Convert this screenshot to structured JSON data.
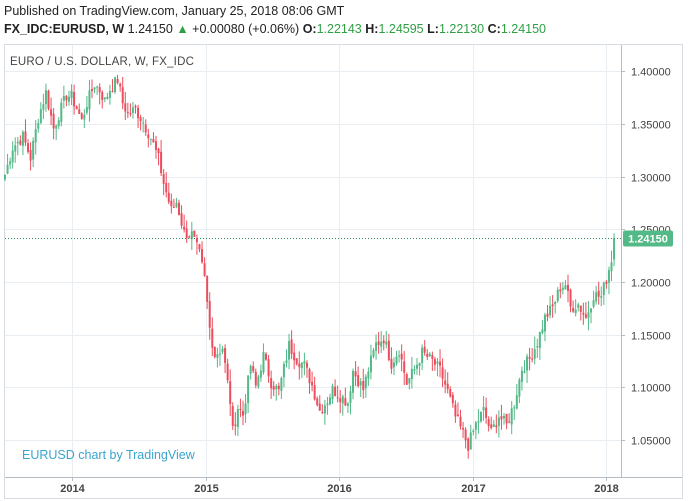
{
  "header": {
    "published": "Published on TradingView.com, January 25, 2018 08:06 GMT",
    "symbol": "FX_IDC:EURUSD, W",
    "last": "1.24150",
    "arrow": "▲",
    "change": "+0.00080 (+0.06%)",
    "o_label": "O:",
    "o_value": "1.22143",
    "h_label": "H:",
    "h_value": "1.24595",
    "l_label": "L:",
    "l_value": "1.22130",
    "c_label": "C:",
    "c_value": "1.24150"
  },
  "chart_title": "EURO / U.S. DOLLAR, W, FX_IDC",
  "watermark": "EURUSD chart by TradingView",
  "colors": {
    "up": "#53b987",
    "down": "#eb4d5c",
    "last_badge": "#53b987",
    "last_line": "#2e8b57",
    "grid": "#e9eef2",
    "axis_text": "#444444",
    "brand": "#3aa5cf"
  },
  "chart_data": {
    "type": "candlestick",
    "title": "EURO / U.S. DOLLAR, W, FX_IDC",
    "y_axis": {
      "position": "right",
      "ticks": [
        "1.05000",
        "1.10000",
        "1.15000",
        "1.20000",
        "1.25000",
        "1.30000",
        "1.35000",
        "1.40000"
      ],
      "ylim": [
        1.015,
        1.425
      ]
    },
    "x_axis": {
      "ticks": [
        "2014",
        "2015",
        "2016",
        "2017",
        "2018"
      ],
      "xlim": [
        "2013-07-01",
        "2018-02-10"
      ]
    },
    "last_price": {
      "value": 1.2415,
      "label": "1.24150"
    },
    "weekly_close_path": [
      [
        "2013-07-01",
        1.302
      ],
      [
        "2013-07-22",
        1.328
      ],
      [
        "2013-08-19",
        1.338
      ],
      [
        "2013-09-09",
        1.318
      ],
      [
        "2013-09-30",
        1.356
      ],
      [
        "2013-10-21",
        1.38
      ],
      [
        "2013-11-11",
        1.346
      ],
      [
        "2013-11-25",
        1.359
      ],
      [
        "2013-12-16",
        1.377
      ],
      [
        "2013-12-30",
        1.376
      ],
      [
        "2014-01-13",
        1.365
      ],
      [
        "2014-01-27",
        1.353
      ],
      [
        "2014-02-10",
        1.37
      ],
      [
        "2014-03-03",
        1.388
      ],
      [
        "2014-03-17",
        1.382
      ],
      [
        "2014-03-31",
        1.372
      ],
      [
        "2014-04-14",
        1.383
      ],
      [
        "2014-05-05",
        1.392
      ],
      [
        "2014-05-19",
        1.37
      ],
      [
        "2014-06-02",
        1.36
      ],
      [
        "2014-06-23",
        1.364
      ],
      [
        "2014-07-14",
        1.352
      ],
      [
        "2014-08-04",
        1.337
      ],
      [
        "2014-08-25",
        1.317
      ],
      [
        "2014-09-08",
        1.294
      ],
      [
        "2014-09-29",
        1.268
      ],
      [
        "2014-10-13",
        1.276
      ],
      [
        "2014-11-03",
        1.247
      ],
      [
        "2014-11-24",
        1.245
      ],
      [
        "2014-12-15",
        1.226
      ],
      [
        "2014-12-29",
        1.203
      ],
      [
        "2015-01-12",
        1.156
      ],
      [
        "2015-01-26",
        1.131
      ],
      [
        "2015-02-16",
        1.138
      ],
      [
        "2015-03-09",
        1.087
      ],
      [
        "2015-03-16",
        1.058
      ],
      [
        "2015-03-30",
        1.081
      ],
      [
        "2015-04-13",
        1.074
      ],
      [
        "2015-05-04",
        1.121
      ],
      [
        "2015-05-18",
        1.101
      ],
      [
        "2015-06-08",
        1.13
      ],
      [
        "2015-06-29",
        1.105
      ],
      [
        "2015-07-20",
        1.096
      ],
      [
        "2015-08-17",
        1.14
      ],
      [
        "2015-09-07",
        1.127
      ],
      [
        "2015-09-28",
        1.121
      ],
      [
        "2015-10-19",
        1.102
      ],
      [
        "2015-11-09",
        1.078
      ],
      [
        "2015-11-30",
        1.088
      ],
      [
        "2015-12-14",
        1.098
      ],
      [
        "2016-01-04",
        1.092
      ],
      [
        "2016-01-25",
        1.086
      ],
      [
        "2016-02-08",
        1.116
      ],
      [
        "2016-03-07",
        1.098
      ],
      [
        "2016-03-21",
        1.117
      ],
      [
        "2016-04-11",
        1.141
      ],
      [
        "2016-05-02",
        1.147
      ],
      [
        "2016-05-23",
        1.123
      ],
      [
        "2016-06-13",
        1.136
      ],
      [
        "2016-07-04",
        1.104
      ],
      [
        "2016-07-25",
        1.117
      ],
      [
        "2016-08-15",
        1.133
      ],
      [
        "2016-09-12",
        1.125
      ],
      [
        "2016-10-03",
        1.116
      ],
      [
        "2016-10-24",
        1.096
      ],
      [
        "2016-11-14",
        1.072
      ],
      [
        "2016-12-05",
        1.056
      ],
      [
        "2016-12-19",
        1.045
      ],
      [
        "2017-01-09",
        1.065
      ],
      [
        "2017-01-30",
        1.078
      ],
      [
        "2017-02-20",
        1.057
      ],
      [
        "2017-03-13",
        1.073
      ],
      [
        "2017-04-03",
        1.064
      ],
      [
        "2017-04-24",
        1.085
      ],
      [
        "2017-05-15",
        1.118
      ],
      [
        "2017-06-05",
        1.127
      ],
      [
        "2017-06-26",
        1.143
      ],
      [
        "2017-07-17",
        1.166
      ],
      [
        "2017-08-07",
        1.176
      ],
      [
        "2017-08-28",
        1.195
      ],
      [
        "2017-09-11",
        1.198
      ],
      [
        "2017-09-25",
        1.176
      ],
      [
        "2017-10-16",
        1.179
      ],
      [
        "2017-11-06",
        1.166
      ],
      [
        "2017-11-27",
        1.188
      ],
      [
        "2017-12-18",
        1.186
      ],
      [
        "2018-01-01",
        1.203
      ],
      [
        "2018-01-15",
        1.222
      ],
      [
        "2018-01-22",
        1.2415
      ]
    ]
  }
}
